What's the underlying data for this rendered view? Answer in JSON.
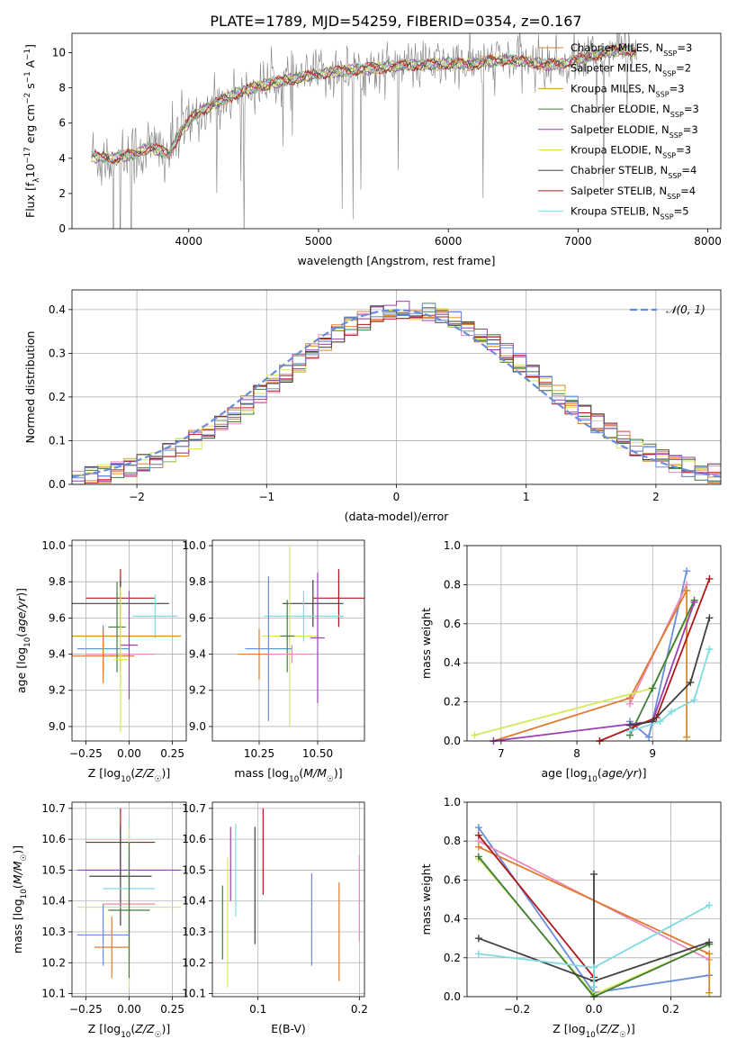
{
  "figure_title": "PLATE=1789, MJD=54259, FIBERID=0354, z=0.167",
  "colors": {
    "chabrier_miles": "#e07a2e",
    "salpeter_miles": "#e88ab8",
    "kroupa_miles": "#d98b2b",
    "chabrier_elodie": "#3e7d3a",
    "salpeter_elodie": "#9b3fb5",
    "kroupa_elodie": "#d6e85a",
    "chabrier_stelib": "#404040",
    "salpeter_stelib": "#b01818",
    "kroupa_stelib": "#7fdbe0",
    "blue_model": "#6a8ddb",
    "gray_data": "#808080"
  },
  "chart_data": [
    {
      "type": "line",
      "title": "PLATE=1789, MJD=54259, FIBERID=0354, z=0.167",
      "xlabel": "wavelength [Angstrom, rest frame]",
      "ylabel": "Flux [f",
      "ylabel_parts": [
        "Flux [f",
        "λ",
        "10",
        "-17",
        " erg cm",
        "-2",
        " s",
        "-1",
        " A",
        "-1",
        "]"
      ],
      "xlim": [
        3100,
        8100
      ],
      "ylim": [
        0,
        11.1
      ],
      "xticks": [
        4000,
        5000,
        6000,
        7000,
        8000
      ],
      "yticks": [
        0,
        2,
        4,
        6,
        8,
        10
      ],
      "legend": [
        {
          "label": "Chabrier MILES, N",
          "sub": "SSP",
          "tail": "=3",
          "color_key": "chabrier_miles"
        },
        {
          "label": "Salpeter MILES, N",
          "sub": "SSP",
          "tail": "=2",
          "color_key": "salpeter_miles"
        },
        {
          "label": "Kroupa MILES, N",
          "sub": "SSP",
          "tail": "=3",
          "color_key": "kroupa_miles"
        },
        {
          "label": "Chabrier ELODIE, N",
          "sub": "SSP",
          "tail": "=3",
          "color_key": "chabrier_elodie"
        },
        {
          "label": "Salpeter ELODIE, N",
          "sub": "SSP",
          "tail": "=3",
          "color_key": "salpeter_elodie"
        },
        {
          "label": "Kroupa ELODIE, N",
          "sub": "SSP",
          "tail": "=3",
          "color_key": "kroupa_elodie"
        },
        {
          "label": "Chabrier STELIB, N",
          "sub": "SSP",
          "tail": "=4",
          "color_key": "chabrier_stelib"
        },
        {
          "label": "Salpeter STELIB, N",
          "sub": "SSP",
          "tail": "=4",
          "color_key": "salpeter_stelib"
        },
        {
          "label": "Kroupa STELIB, N",
          "sub": "SSP",
          "tail": "=5",
          "color_key": "kroupa_stelib"
        }
      ],
      "legend_position": "right",
      "model_curve": {
        "x": [
          3250,
          3400,
          3550,
          3700,
          3850,
          3950,
          4050,
          4200,
          4350,
          4500,
          4650,
          4800,
          4950,
          5100,
          5250,
          5400,
          5550,
          5700,
          5850,
          6000,
          6150,
          6300,
          6450,
          6600,
          6750,
          6900,
          7050,
          7200,
          7350,
          7450
        ],
        "y": [
          4.1,
          4.0,
          4.2,
          4.6,
          4.3,
          5.6,
          6.5,
          7.1,
          7.6,
          8.0,
          8.3,
          8.5,
          8.7,
          8.9,
          9.0,
          9.1,
          9.2,
          9.3,
          9.3,
          9.4,
          9.3,
          9.5,
          9.6,
          9.5,
          9.3,
          9.4,
          9.7,
          10.0,
          10.2,
          10.0
        ]
      }
    },
    {
      "type": "bar",
      "xlabel": "(data-model)/error",
      "ylabel": "Normed distribution",
      "xlim": [
        -2.5,
        2.5
      ],
      "ylim": [
        0,
        0.445
      ],
      "xticks": [
        -2,
        -1,
        0,
        1,
        2
      ],
      "xtick_labels": [
        "−2",
        "−1",
        "0",
        "1",
        "2"
      ],
      "yticks": [
        0.0,
        0.1,
        0.2,
        0.3,
        0.4
      ],
      "grid": true,
      "legend": [
        {
          "label": "𝒩(0, 1)",
          "style": "dashed",
          "color_key": "blue_model"
        }
      ],
      "legend_position": "top-right",
      "bin_width": 0.1
    },
    {
      "type": "scatter",
      "xlabel": "Z [log10(Z/Z☉)]",
      "ylabel": "age [log10(age/yr)]",
      "xlim": [
        -0.33,
        0.33
      ],
      "ylim": [
        8.92,
        10.03
      ],
      "xticks": [
        -0.25,
        0.0,
        0.25
      ],
      "xtick_labels": [
        "−0.25",
        "0.00",
        "0.25"
      ],
      "yticks": [
        9.0,
        9.2,
        9.4,
        9.6,
        9.8,
        10.0
      ],
      "points": [
        {
          "color_key": "salpeter_stelib",
          "x": -0.05,
          "xerr": 0.2,
          "y": 9.71,
          "yerr": 0.16
        },
        {
          "color_key": "chabrier_stelib",
          "x": -0.05,
          "xerr": 0.28,
          "y": 9.68,
          "yerr": 0.13
        },
        {
          "color_key": "kroupa_stelib",
          "x": 0.15,
          "xerr": 0.13,
          "y": 9.61,
          "yerr": 0.12
        },
        {
          "color_key": "kroupa_miles",
          "x": -0.05,
          "xerr": 0.35,
          "y": 9.5,
          "yerr": 0.2
        },
        {
          "color_key": "blue_model",
          "x": -0.15,
          "xerr": 0.15,
          "y": 9.43,
          "yerr": 0.13
        },
        {
          "color_key": "salpeter_miles",
          "x": -0.05,
          "xerr": 0.2,
          "y": 9.4,
          "yerr": 0.15
        },
        {
          "color_key": "chabrier_miles",
          "x": -0.15,
          "xerr": 0.18,
          "y": 9.39,
          "yerr": 0.15
        },
        {
          "color_key": "chabrier_elodie",
          "x": -0.07,
          "xerr": 0.05,
          "y": 9.55,
          "yerr": 0.25
        },
        {
          "color_key": "salpeter_elodie",
          "x": 0.0,
          "xerr": 0.05,
          "y": 9.45,
          "yerr": 0.3
        },
        {
          "color_key": "kroupa_elodie",
          "x": -0.05,
          "xerr": 0.04,
          "y": 9.37,
          "yerr": 0.4
        }
      ]
    },
    {
      "type": "scatter",
      "xlabel": "mass [log10(M/M☉)]",
      "ylabel": "",
      "xlim": [
        10.05,
        10.7
      ],
      "ylim": [
        8.92,
        10.03
      ],
      "xticks": [
        10.25,
        10.5
      ],
      "xtick_labels": [
        "10.25",
        "10.50"
      ],
      "yticks": [
        9.0,
        9.2,
        9.4,
        9.6,
        9.8,
        10.0
      ],
      "points": [
        {
          "color_key": "salpeter_stelib",
          "x": 10.59,
          "xerr": 0.11,
          "y": 9.71,
          "yerr": 0.16
        },
        {
          "color_key": "chabrier_stelib",
          "x": 10.48,
          "xerr": 0.13,
          "y": 9.68,
          "yerr": 0.13
        },
        {
          "color_key": "kroupa_stelib",
          "x": 10.44,
          "xerr": 0.17,
          "y": 9.61,
          "yerr": 0.14
        },
        {
          "color_key": "kroupa_elodie",
          "x": 10.38,
          "xerr": 0.12,
          "y": 9.5,
          "yerr": 0.5
        },
        {
          "color_key": "blue_model",
          "x": 10.29,
          "xerr": 0.1,
          "y": 9.43,
          "yerr": 0.4
        },
        {
          "color_key": "salpeter_elodie",
          "x": 10.5,
          "xerr": 0.03,
          "y": 9.49,
          "yerr": 0.36
        },
        {
          "color_key": "chabrier_miles",
          "x": 10.25,
          "xerr": 0.09,
          "y": 9.4,
          "yerr": 0.14
        },
        {
          "color_key": "chabrier_elodie",
          "x": 10.37,
          "xerr": 0.03,
          "y": 9.5,
          "yerr": 0.2
        },
        {
          "color_key": "salpeter_miles",
          "x": 10.39,
          "xerr": 0.1,
          "y": 9.4,
          "yerr": 0.05
        }
      ]
    },
    {
      "type": "line",
      "xlabel": "age [log10(age/yr)]",
      "ylabel": "mass weight",
      "xlim": [
        6.55,
        9.9
      ],
      "ylim": [
        0,
        1.0
      ],
      "xticks": [
        7,
        8,
        9
      ],
      "yticks": [
        0.0,
        0.2,
        0.4,
        0.6,
        0.8,
        1.0
      ],
      "grid": true,
      "series": [
        {
          "color_key": "blue_model",
          "x": [
            8.7,
            8.95,
            9.45
          ],
          "y": [
            0.1,
            0.02,
            0.87
          ]
        },
        {
          "color_key": "salpeter_miles",
          "x": [
            8.7,
            9.45
          ],
          "y": [
            0.19,
            0.8
          ]
        },
        {
          "color_key": "chabrier_miles",
          "x": [
            6.9,
            8.7,
            9.45
          ],
          "y": [
            0.0,
            0.22,
            0.77
          ]
        },
        {
          "color_key": "kroupa_miles",
          "x": [
            9.45,
            9.45
          ],
          "y": [
            0.77,
            0.02
          ]
        },
        {
          "color_key": "kroupa_elodie",
          "x": [
            6.65,
            9.0,
            9.55
          ],
          "y": [
            0.03,
            0.27,
            0.71
          ]
        },
        {
          "color_key": "chabrier_elodie",
          "x": [
            8.7,
            9.0,
            9.55
          ],
          "y": [
            0.03,
            0.27,
            0.72
          ]
        },
        {
          "color_key": "salpeter_elodie",
          "x": [
            6.9,
            9.0,
            9.55
          ],
          "y": [
            0.0,
            0.1,
            0.71
          ]
        },
        {
          "color_key": "salpeter_stelib",
          "x": [
            8.3,
            9.05,
            9.75
          ],
          "y": [
            0.0,
            0.12,
            0.83
          ]
        },
        {
          "color_key": "chabrier_stelib",
          "x": [
            8.7,
            9.0,
            9.5,
            9.75
          ],
          "y": [
            0.08,
            0.1,
            0.3,
            0.63
          ]
        },
        {
          "color_key": "kroupa_stelib",
          "x": [
            8.7,
            9.1,
            9.25,
            9.55,
            9.75
          ],
          "y": [
            0.05,
            0.1,
            0.15,
            0.21,
            0.47
          ]
        }
      ]
    },
    {
      "type": "scatter",
      "xlabel": "Z [log10(Z/Z☉)]",
      "ylabel": "mass [log10(M/M☉)]",
      "xlim": [
        -0.33,
        0.33
      ],
      "ylim": [
        10.09,
        10.72
      ],
      "xticks": [
        -0.25,
        0.0,
        0.25
      ],
      "xtick_labels": [
        "−0.25",
        "0.00",
        "0.25"
      ],
      "yticks": [
        10.1,
        10.2,
        10.3,
        10.4,
        10.5,
        10.6,
        10.7
      ],
      "points": [
        {
          "color_key": "salpeter_stelib",
          "x": -0.05,
          "xerr": 0.2,
          "y": 10.59,
          "yerr": 0.11
        },
        {
          "color_key": "salpeter_elodie",
          "x": 0.0,
          "xerr": 0.3,
          "y": 10.5,
          "yerr": 0.03
        },
        {
          "color_key": "chabrier_stelib",
          "x": -0.05,
          "xerr": 0.18,
          "y": 10.48,
          "yerr": 0.16
        },
        {
          "color_key": "kroupa_stelib",
          "x": 0.0,
          "xerr": 0.15,
          "y": 10.44,
          "yerr": 0.23
        },
        {
          "color_key": "salpeter_miles",
          "x": 0.0,
          "xerr": 0.15,
          "y": 10.39,
          "yerr": 0.1
        },
        {
          "color_key": "kroupa_elodie",
          "x": 0.0,
          "xerr": 0.3,
          "y": 10.38,
          "yerr": 0.26
        },
        {
          "color_key": "chabrier_elodie",
          "x": 0.0,
          "xerr": 0.12,
          "y": 10.37,
          "yerr": 0.22
        },
        {
          "color_key": "blue_model",
          "x": -0.15,
          "xerr": 0.15,
          "y": 10.29,
          "yerr": 0.1
        },
        {
          "color_key": "chabrier_miles",
          "x": -0.1,
          "xerr": 0.1,
          "y": 10.25,
          "yerr": 0.1
        }
      ]
    },
    {
      "type": "scatter",
      "xlabel": "E(B-V)",
      "ylabel": "",
      "xlim": [
        0.055,
        0.205
      ],
      "ylim": [
        10.09,
        10.72
      ],
      "xticks": [
        0.1,
        0.2
      ],
      "xtick_labels": [
        "0.1",
        "0.2"
      ],
      "yticks": [
        10.1,
        10.2,
        10.3,
        10.4,
        10.5,
        10.6,
        10.7
      ],
      "points": [
        {
          "color_key": "chabrier_elodie",
          "x": 0.065,
          "y": 10.33,
          "yerr": 0.12
        },
        {
          "color_key": "kroupa_elodie",
          "x": 0.07,
          "y": 10.33,
          "yerr": 0.21
        },
        {
          "color_key": "salpeter_elodie",
          "x": 0.073,
          "y": 10.52,
          "yerr": 0.12
        },
        {
          "color_key": "kroupa_stelib",
          "x": 0.078,
          "y": 10.5,
          "yerr": 0.15
        },
        {
          "color_key": "chabrier_stelib",
          "x": 0.097,
          "y": 10.45,
          "yerr": 0.19
        },
        {
          "color_key": "salpeter_stelib",
          "x": 0.105,
          "y": 10.56,
          "yerr": 0.14
        },
        {
          "color_key": "blue_model",
          "x": 0.153,
          "y": 10.34,
          "yerr": 0.15
        },
        {
          "color_key": "chabrier_miles",
          "x": 0.18,
          "y": 10.3,
          "yerr": 0.16
        },
        {
          "color_key": "salpeter_miles",
          "x": 0.2,
          "y": 10.41,
          "yerr": 0.14
        }
      ]
    },
    {
      "type": "line",
      "xlabel": "Z [log10(Z/Z☉)]",
      "ylabel": "mass weight",
      "xlim": [
        -0.33,
        0.33
      ],
      "ylim": [
        0,
        1.0
      ],
      "xticks": [
        -0.2,
        0.0,
        0.2
      ],
      "xtick_labels": [
        "−0.2",
        "0.0",
        "0.2"
      ],
      "yticks": [
        0.0,
        0.2,
        0.4,
        0.6,
        0.8,
        1.0
      ],
      "grid": true,
      "series": [
        {
          "color_key": "blue_model",
          "x": [
            -0.3,
            0.0,
            0.3
          ],
          "y": [
            0.87,
            0.02,
            0.11
          ]
        },
        {
          "color_key": "salpeter_miles",
          "x": [
            -0.3,
            0.3
          ],
          "y": [
            0.8,
            0.19
          ]
        },
        {
          "color_key": "chabrier_miles",
          "x": [
            -0.3,
            0.3
          ],
          "y": [
            0.77,
            0.22
          ]
        },
        {
          "color_key": "kroupa_miles",
          "x": [
            0.3,
            0.3
          ],
          "y": [
            0.22,
            0.02
          ]
        },
        {
          "color_key": "kroupa_elodie",
          "x": [
            -0.3,
            0.0,
            0.3
          ],
          "y": [
            0.71,
            0.01,
            0.27
          ]
        },
        {
          "color_key": "chabrier_elodie",
          "x": [
            -0.3,
            0.0,
            0.3
          ],
          "y": [
            0.72,
            0.0,
            0.27
          ]
        },
        {
          "color_key": "salpeter_stelib",
          "x": [
            -0.3,
            0.0
          ],
          "y": [
            0.83,
            0.1
          ]
        },
        {
          "color_key": "chabrier_stelib",
          "x": [
            -0.3,
            0.0,
            0.3
          ],
          "y": [
            0.3,
            0.08,
            0.28
          ]
        },
        {
          "color_key": "chabrier_stelib",
          "x": [
            0.0,
            0.0
          ],
          "y": [
            0.63,
            0.05
          ]
        },
        {
          "color_key": "kroupa_stelib",
          "x": [
            -0.3,
            0.0,
            0.3
          ],
          "y": [
            0.22,
            0.15,
            0.47
          ]
        },
        {
          "color_key": "kroupa_stelib",
          "x": [
            0.0,
            0.0
          ],
          "y": [
            0.15,
            0.05
          ]
        }
      ]
    }
  ]
}
